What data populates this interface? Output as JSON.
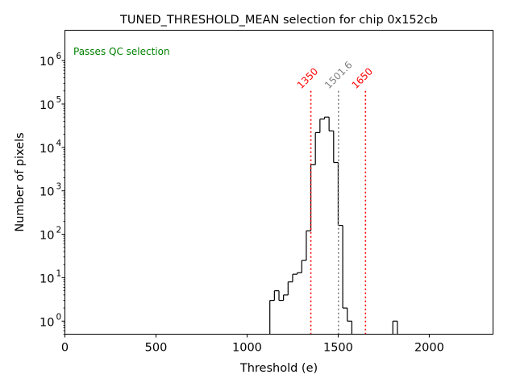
{
  "chart_data": {
    "type": "histogram",
    "title": "TUNED_THRESHOLD_MEAN selection for chip 0x152cb",
    "xlabel": "Threshold (e)",
    "ylabel": "Number of pixels",
    "xlim": [
      0,
      2350
    ],
    "ylim": [
      0.5,
      5000000
    ],
    "yscale": "log",
    "grid": false,
    "legend": "none",
    "x_ticks": [
      {
        "value": 0,
        "label": "0"
      },
      {
        "value": 500,
        "label": "500"
      },
      {
        "value": 1000,
        "label": "1000"
      },
      {
        "value": 1500,
        "label": "1500"
      },
      {
        "value": 2000,
        "label": "2000"
      }
    ],
    "y_ticks": [
      {
        "value": 1,
        "base": "10",
        "exp": "0"
      },
      {
        "value": 10,
        "base": "10",
        "exp": "1"
      },
      {
        "value": 100,
        "base": "10",
        "exp": "2"
      },
      {
        "value": 1000,
        "base": "10",
        "exp": "3"
      },
      {
        "value": 10000,
        "base": "10",
        "exp": "4"
      },
      {
        "value": 100000,
        "base": "10",
        "exp": "5"
      },
      {
        "value": 1000000,
        "base": "10",
        "exp": "6"
      }
    ],
    "bin_width": 25,
    "bins": [
      {
        "x": 1137.5,
        "count": 3
      },
      {
        "x": 1162.5,
        "count": 5
      },
      {
        "x": 1187.5,
        "count": 3
      },
      {
        "x": 1212.5,
        "count": 4
      },
      {
        "x": 1237.5,
        "count": 8
      },
      {
        "x": 1262.5,
        "count": 12
      },
      {
        "x": 1287.5,
        "count": 13
      },
      {
        "x": 1312.5,
        "count": 25
      },
      {
        "x": 1337.5,
        "count": 120
      },
      {
        "x": 1362.5,
        "count": 4000
      },
      {
        "x": 1387.5,
        "count": 22000
      },
      {
        "x": 1412.5,
        "count": 45000
      },
      {
        "x": 1437.5,
        "count": 50000
      },
      {
        "x": 1462.5,
        "count": 24000
      },
      {
        "x": 1487.5,
        "count": 4500
      },
      {
        "x": 1512.5,
        "count": 160
      },
      {
        "x": 1537.5,
        "count": 2
      },
      {
        "x": 1562.5,
        "count": 1
      },
      {
        "x": 1587.5,
        "count": 0
      },
      {
        "x": 1612.5,
        "count": 0
      },
      {
        "x": 1637.5,
        "count": 0
      },
      {
        "x": 1662.5,
        "count": 0
      },
      {
        "x": 1687.5,
        "count": 0
      },
      {
        "x": 1712.5,
        "count": 0
      },
      {
        "x": 1737.5,
        "count": 0
      },
      {
        "x": 1762.5,
        "count": 0
      },
      {
        "x": 1787.5,
        "count": 0
      },
      {
        "x": 1812.5,
        "count": 1
      }
    ],
    "vlines": [
      {
        "x": 1350,
        "label": "1350",
        "color": "#ff0000"
      },
      {
        "x": 1501.6,
        "label": "1501.6",
        "color": "#808080"
      },
      {
        "x": 1650,
        "label": "1650",
        "color": "#ff0000"
      }
    ],
    "annotation": {
      "text": "Passes QC selection",
      "color": "#008000"
    },
    "colors": {
      "hist": "#000000",
      "axis": "#000000"
    }
  }
}
